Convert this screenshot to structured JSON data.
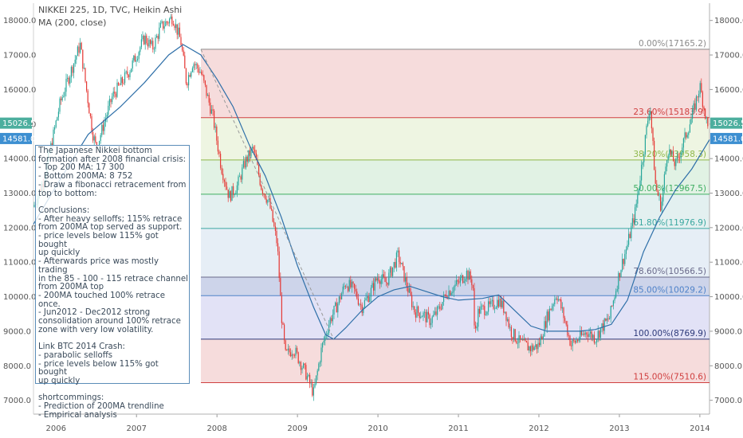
{
  "header": {
    "title": "NIKKEI 225, 1D, TVC, Heikin Ashi",
    "indicator": "MA (200, close)"
  },
  "price_badges": {
    "upper": "15026.5",
    "lower": "14581.0"
  },
  "note": {
    "lines": [
      "The Japanese Nikkei bottom",
      "formation after 2008 financial crisis:",
      "- Top 200 MA: 17 300",
      "- Bottom 200MA: 8 752",
      "- Draw a fibonacci retracement from",
      "top to bottom:",
      "",
      "Conclusions:",
      "- After heavy selloffs; 115% retrace",
      "from 200MA top served as support.",
      "- price levels below 115% got bought",
      "up quickly",
      "- Afterwards price was mostly trading",
      "in the 85 - 100 - 115 retrace channel",
      "from 200MA top",
      "- 200MA touched 100% retrace once.",
      "- Jun2012 - Dec2012 strong",
      "consolidation around 100% retrace",
      "zone with very low volatility.",
      "",
      "Link BTC 2014 Crash:",
      "- parabolic selloffs",
      "- price levels below 115% got bought",
      "up quickly",
      "",
      "shortcommings:",
      "- Prediction of 200MA trendline",
      "- Empirical analysis"
    ]
  },
  "colors": {
    "candle_up": "#26a69a",
    "candle_down": "#e53935",
    "ma_line": "#2e6fa8",
    "badge_upper": "#4cae9e",
    "badge_lower": "#3d8fd1"
  },
  "chart_data": {
    "type": "candlestick",
    "x_ticks": [
      "2006",
      "2007",
      "2008",
      "2009",
      "2010",
      "2011",
      "2012",
      "2013",
      "2014"
    ],
    "x_tick_years": [
      2006,
      2007,
      2008,
      2009,
      2010,
      2011,
      2012,
      2013,
      2014
    ],
    "xlim": [
      2005.72,
      2014.12
    ],
    "y_ticks": [
      7000,
      8000,
      9000,
      10000,
      11000,
      12000,
      13000,
      14000,
      15000,
      16000,
      17000,
      18000
    ],
    "y_tick_labels": [
      "7000.0",
      "8000.0",
      "9000.0",
      "10000.0",
      "11000.0",
      "12000.0",
      "13000.0",
      "14000.0",
      "15000.0",
      "16000.0",
      "17000.0",
      "18000.0"
    ],
    "ylim": [
      6600,
      18500
    ],
    "price_path": [
      [
        2005.72,
        12600
      ],
      [
        2005.85,
        13400
      ],
      [
        2006.05,
        15600
      ],
      [
        2006.15,
        16300
      ],
      [
        2006.3,
        17300
      ],
      [
        2006.45,
        14800
      ],
      [
        2006.5,
        14300
      ],
      [
        2006.7,
        15800
      ],
      [
        2006.9,
        16500
      ],
      [
        2007.1,
        17500
      ],
      [
        2007.2,
        17200
      ],
      [
        2007.3,
        17800
      ],
      [
        2007.45,
        18100
      ],
      [
        2007.55,
        17400
      ],
      [
        2007.62,
        16200
      ],
      [
        2007.7,
        16800
      ],
      [
        2007.8,
        16500
      ],
      [
        2007.95,
        15200
      ],
      [
        2008.05,
        13800
      ],
      [
        2008.15,
        12900
      ],
      [
        2008.25,
        13200
      ],
      [
        2008.35,
        13900
      ],
      [
        2008.45,
        14300
      ],
      [
        2008.55,
        13200
      ],
      [
        2008.65,
        12700
      ],
      [
        2008.75,
        11500
      ],
      [
        2008.8,
        9500
      ],
      [
        2008.85,
        8300
      ],
      [
        2008.95,
        8500
      ],
      [
        2009.1,
        7800
      ],
      [
        2009.2,
        7200
      ],
      [
        2009.3,
        8500
      ],
      [
        2009.4,
        9300
      ],
      [
        2009.5,
        9800
      ],
      [
        2009.6,
        10400
      ],
      [
        2009.7,
        10200
      ],
      [
        2009.8,
        9700
      ],
      [
        2009.9,
        10100
      ],
      [
        2010.0,
        10600
      ],
      [
        2010.1,
        10400
      ],
      [
        2010.25,
        11200
      ],
      [
        2010.35,
        10400
      ],
      [
        2010.45,
        9600
      ],
      [
        2010.55,
        9500
      ],
      [
        2010.65,
        9300
      ],
      [
        2010.75,
        9600
      ],
      [
        2010.85,
        10100
      ],
      [
        2011.0,
        10400
      ],
      [
        2011.1,
        10700
      ],
      [
        2011.18,
        10400
      ],
      [
        2011.2,
        8900
      ],
      [
        2011.25,
        9600
      ],
      [
        2011.4,
        9700
      ],
      [
        2011.5,
        9900
      ],
      [
        2011.58,
        9600
      ],
      [
        2011.65,
        9000
      ],
      [
        2011.75,
        8700
      ],
      [
        2011.9,
        8500
      ],
      [
        2012.0,
        8600
      ],
      [
        2012.1,
        9400
      ],
      [
        2012.22,
        10100
      ],
      [
        2012.3,
        9500
      ],
      [
        2012.4,
        8600
      ],
      [
        2012.5,
        8800
      ],
      [
        2012.6,
        9000
      ],
      [
        2012.7,
        8800
      ],
      [
        2012.78,
        9100
      ],
      [
        2012.88,
        9400
      ],
      [
        2013.0,
        10700
      ],
      [
        2013.1,
        11500
      ],
      [
        2013.2,
        12500
      ],
      [
        2013.3,
        14200
      ],
      [
        2013.38,
        15600
      ],
      [
        2013.45,
        13200
      ],
      [
        2013.52,
        12600
      ],
      [
        2013.6,
        14300
      ],
      [
        2013.7,
        13800
      ],
      [
        2013.8,
        14500
      ],
      [
        2013.9,
        15200
      ],
      [
        2014.0,
        16100
      ],
      [
        2014.05,
        15500
      ],
      [
        2014.12,
        14600
      ]
    ],
    "ma200_path": [
      [
        2005.72,
        12100
      ],
      [
        2006.0,
        13200
      ],
      [
        2006.4,
        14700
      ],
      [
        2006.8,
        15500
      ],
      [
        2007.1,
        16200
      ],
      [
        2007.4,
        17000
      ],
      [
        2007.58,
        17300
      ],
      [
        2007.8,
        17000
      ],
      [
        2008.0,
        16300
      ],
      [
        2008.2,
        15500
      ],
      [
        2008.4,
        14400
      ],
      [
        2008.6,
        13500
      ],
      [
        2008.8,
        12300
      ],
      [
        2009.0,
        10900
      ],
      [
        2009.2,
        9700
      ],
      [
        2009.35,
        8900
      ],
      [
        2009.45,
        8770
      ],
      [
        2009.6,
        9100
      ],
      [
        2009.8,
        9600
      ],
      [
        2010.0,
        10000
      ],
      [
        2010.2,
        10200
      ],
      [
        2010.4,
        10300
      ],
      [
        2010.6,
        10150
      ],
      [
        2010.8,
        10000
      ],
      [
        2011.0,
        9900
      ],
      [
        2011.3,
        9950
      ],
      [
        2011.5,
        10050
      ],
      [
        2011.7,
        9600
      ],
      [
        2011.9,
        9150
      ],
      [
        2012.1,
        9000
      ],
      [
        2012.3,
        9000
      ],
      [
        2012.5,
        9000
      ],
      [
        2012.7,
        9050
      ],
      [
        2012.9,
        9200
      ],
      [
        2013.1,
        9900
      ],
      [
        2013.3,
        11300
      ],
      [
        2013.5,
        12300
      ],
      [
        2013.7,
        13100
      ],
      [
        2013.9,
        13700
      ],
      [
        2014.12,
        14550
      ]
    ],
    "fib_retracement": {
      "start_year": 2007.8,
      "end_year": 2014.12,
      "levels": [
        {
          "label": "0.00%(17165.2)",
          "pct": 0.0,
          "value": 17165.2,
          "color": "#8a8a8a",
          "fill": "#f6dcdc"
        },
        {
          "label": "23.60%(15183.9)",
          "pct": 23.6,
          "value": 15183.9,
          "color": "#d04040",
          "fill": "#eef5e2"
        },
        {
          "label": "38.20%(13958.3)",
          "pct": 38.2,
          "value": 13958.3,
          "color": "#8fb84a",
          "fill": "#e1f2e4"
        },
        {
          "label": "50.00%(12967.5)",
          "pct": 50.0,
          "value": 12967.5,
          "color": "#3fae62",
          "fill": "#e3f0f0"
        },
        {
          "label": "61.80%(11976.9)",
          "pct": 61.8,
          "value": 11976.9,
          "color": "#3aa7a0",
          "fill": "#e6eef6"
        },
        {
          "label": "78.60%(10566.5)",
          "pct": 78.6,
          "value": 10566.5,
          "color": "#6a6a8a",
          "fill": "#cdd4ea"
        },
        {
          "label": "85.00%(10029.2)",
          "pct": 85.0,
          "value": 10029.2,
          "color": "#4f82c9",
          "fill": "#e2e2f6"
        },
        {
          "label": "100.00%(8769.9)",
          "pct": 100.0,
          "value": 8769.9,
          "color": "#2d3a7a",
          "fill": "#f6dcdc"
        },
        {
          "label": "115.00%(7510.6)",
          "pct": 115.0,
          "value": 7510.6,
          "color": "#d04040",
          "fill": null
        }
      ]
    },
    "trend_line": {
      "x": [
        2007.8,
        2009.45
      ],
      "y": [
        17165.2,
        8769.9
      ]
    }
  }
}
